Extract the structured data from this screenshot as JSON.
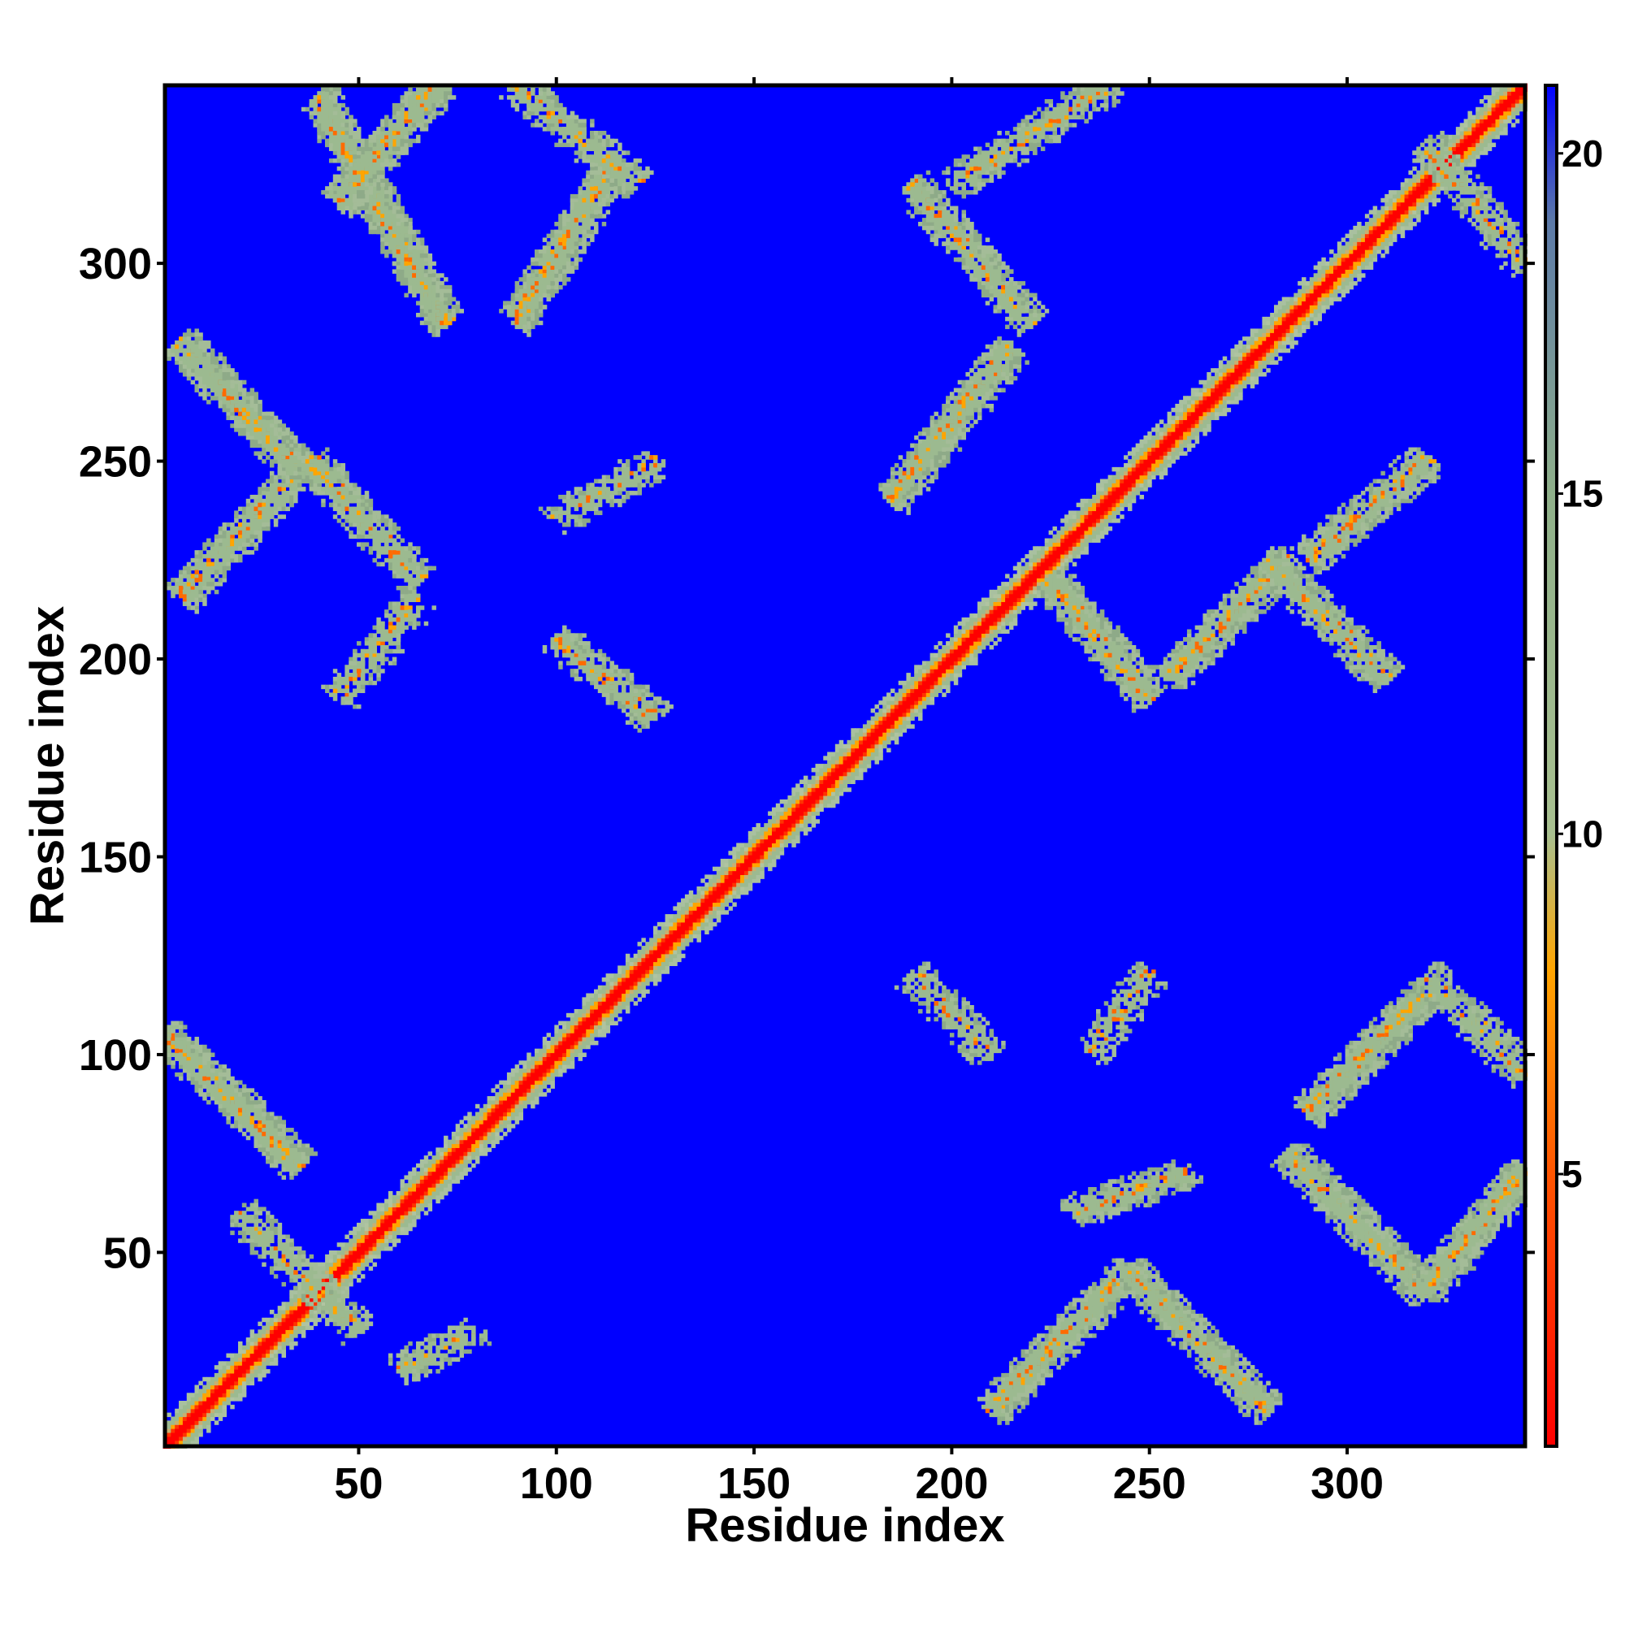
{
  "chart_data": {
    "type": "heatmap",
    "title": "",
    "xlabel": "Residue index",
    "ylabel": "Residue index",
    "xlim": [
      1,
      345
    ],
    "ylim": [
      1,
      345
    ],
    "x_ticks": [
      50,
      100,
      150,
      200,
      250,
      300
    ],
    "y_ticks": [
      50,
      100,
      150,
      200,
      250,
      300
    ],
    "colorbar": {
      "range": [
        1,
        21
      ],
      "ticks": [
        5,
        10,
        15,
        20
      ],
      "stops": [
        {
          "value": 1,
          "color": "#ff0000"
        },
        {
          "value": 5,
          "color": "#ff5500"
        },
        {
          "value": 8,
          "color": "#ffa500"
        },
        {
          "value": 10,
          "color": "#a8c090"
        },
        {
          "value": 15,
          "color": "#8fb08a"
        },
        {
          "value": 19,
          "color": "#5c7aa8"
        },
        {
          "value": 21,
          "color": "#0000ff"
        }
      ]
    },
    "background_value": 21,
    "colors": {
      "background": "#0000ff",
      "near": "#ff0000",
      "mid": "#ffa500",
      "contact": "#9cba90"
    },
    "bands": [
      {
        "name": "diagonal",
        "type": "diagonal",
        "value": 1
      },
      {
        "name": "b1",
        "i": [
          1,
          35
        ],
        "j": [
          72,
          105
        ],
        "dir": "anti",
        "strength": 0.9
      },
      {
        "name": "b2",
        "i": [
          20,
          50
        ],
        "j": [
          30,
          60
        ],
        "dir": "anti",
        "strength": 0.6
      },
      {
        "name": "b3",
        "i": [
          40,
          72
        ],
        "j": [
          285,
          342
        ],
        "dir": "anti",
        "strength": 1.0
      },
      {
        "name": "b4",
        "i": [
          45,
          70
        ],
        "j": [
          315,
          345
        ],
        "dir": "par",
        "strength": 0.9
      },
      {
        "name": "b5",
        "i": [
          90,
          115
        ],
        "j": [
          285,
          325
        ],
        "dir": "par",
        "strength": 0.9
      },
      {
        "name": "b6",
        "i": [
          5,
          38
        ],
        "j": [
          215,
          250
        ],
        "dir": "par",
        "strength": 0.8
      },
      {
        "name": "b7",
        "i": [
          5,
          35
        ],
        "j": [
          248,
          280
        ],
        "dir": "anti",
        "strength": 0.9
      },
      {
        "name": "b8",
        "i": [
          38,
          65
        ],
        "j": [
          220,
          250
        ],
        "dir": "anti",
        "strength": 0.7
      },
      {
        "name": "b9",
        "i": [
          185,
          215
        ],
        "j": [
          240,
          278
        ],
        "dir": "par",
        "strength": 0.9
      },
      {
        "name": "b10",
        "i": [
          190,
          220
        ],
        "j": [
          285,
          320
        ],
        "dir": "anti",
        "strength": 0.8
      },
      {
        "name": "b11",
        "i": [
          225,
          250
        ],
        "j": [
          190,
          220
        ],
        "dir": "anti",
        "strength": 0.9
      },
      {
        "name": "b12",
        "i": [
          255,
          285
        ],
        "j": [
          195,
          225
        ],
        "dir": "par",
        "strength": 0.9
      },
      {
        "name": "b13",
        "i": [
          280,
          310
        ],
        "j": [
          195,
          225
        ],
        "dir": "anti",
        "strength": 0.8
      },
      {
        "name": "b14",
        "i": [
          290,
          320
        ],
        "j": [
          225,
          250
        ],
        "dir": "par",
        "strength": 0.7
      },
      {
        "name": "b15",
        "i": [
          320,
          345
        ],
        "j": [
          300,
          330
        ],
        "dir": "anti",
        "strength": 0.6
      },
      {
        "name": "b16",
        "i": [
          210,
          245
        ],
        "j": [
          10,
          45
        ],
        "dir": "par",
        "strength": 0.9
      },
      {
        "name": "b17",
        "i": [
          245,
          280
        ],
        "j": [
          10,
          45
        ],
        "dir": "anti",
        "strength": 0.9
      },
      {
        "name": "b18",
        "i": [
          285,
          320
        ],
        "j": [
          40,
          75
        ],
        "dir": "anti",
        "strength": 1.0
      },
      {
        "name": "b19",
        "i": [
          320,
          345
        ],
        "j": [
          40,
          70
        ],
        "dir": "par",
        "strength": 0.9
      },
      {
        "name": "b20",
        "i": [
          290,
          320
        ],
        "j": [
          85,
          115
        ],
        "dir": "par",
        "strength": 0.9
      },
      {
        "name": "b21",
        "i": [
          320,
          345
        ],
        "j": [
          95,
          120
        ],
        "dir": "anti",
        "strength": 0.6
      },
      {
        "name": "b22",
        "i": [
          190,
          210
        ],
        "j": [
          100,
          120
        ],
        "dir": "anti",
        "strength": 0.6
      },
      {
        "name": "b23",
        "i": [
          235,
          250
        ],
        "j": [
          100,
          120
        ],
        "dir": "par",
        "strength": 0.4
      },
      {
        "name": "b24",
        "i": [
          100,
          125
        ],
        "j": [
          185,
          205
        ],
        "dir": "anti",
        "strength": 0.6
      },
      {
        "name": "b25",
        "i": [
          100,
          125
        ],
        "j": [
          235,
          250
        ],
        "dir": "par",
        "strength": 0.4
      },
      {
        "name": "b26",
        "i": [
          90,
          120
        ],
        "j": [
          320,
          345
        ],
        "dir": "anti",
        "strength": 0.6
      },
      {
        "name": "b27",
        "i": [
          200,
          240
        ],
        "j": [
          320,
          345
        ],
        "dir": "par",
        "strength": 0.5
      },
      {
        "name": "b28",
        "i": [
          45,
          65
        ],
        "j": [
          190,
          215
        ],
        "dir": "par",
        "strength": 0.5
      },
      {
        "name": "b29",
        "i": [
          230,
          260
        ],
        "j": [
          60,
          70
        ],
        "dir": "par",
        "strength": 0.5
      },
      {
        "name": "b30",
        "i": [
          60,
          80
        ],
        "j": [
          20,
          30
        ],
        "dir": "par",
        "strength": 0.4
      }
    ]
  }
}
